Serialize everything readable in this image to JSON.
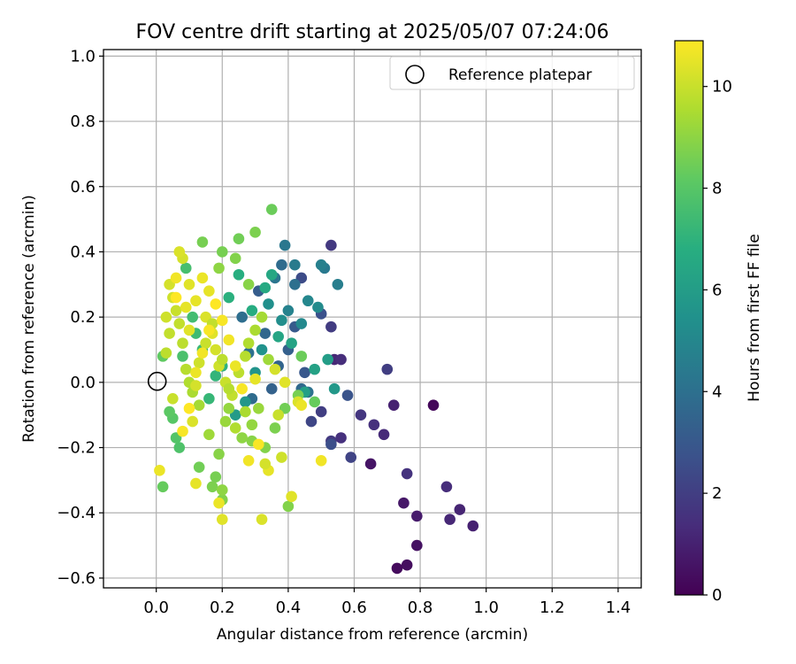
{
  "chart_data": {
    "type": "scatter",
    "title": "FOV centre drift starting at 2025/05/07 07:24:06",
    "xlabel": "Angular distance from reference (arcmin)",
    "ylabel": "Rotation from reference (arcmin)",
    "xlim": [
      -0.16,
      1.47
    ],
    "ylim": [
      -0.63,
      1.02
    ],
    "xticks": [
      0.0,
      0.2,
      0.4,
      0.6,
      0.8,
      1.0,
      1.2,
      1.4
    ],
    "xtick_labels": [
      "0.0",
      "0.2",
      "0.4",
      "0.6",
      "0.8",
      "1.0",
      "1.2",
      "1.4"
    ],
    "yticks": [
      -0.6,
      -0.4,
      -0.2,
      0.0,
      0.2,
      0.4,
      0.6,
      0.8,
      1.0
    ],
    "ytick_labels": [
      "−0.6",
      "−0.4",
      "−0.2",
      "0.0",
      "0.2",
      "0.4",
      "0.6",
      "0.8",
      "1.0"
    ],
    "grid": true,
    "legend": {
      "position": "top-right",
      "entries": [
        "Reference platepar"
      ]
    },
    "reference_point": {
      "x": 0.0,
      "y": 0.0,
      "label": "Reference platepar"
    },
    "colorbar": {
      "label": "Hours from first FF file",
      "colormap": "viridis",
      "range": [
        0,
        10.9
      ],
      "ticks": [
        0,
        2,
        4,
        6,
        8,
        10
      ],
      "tick_labels": [
        "0",
        "2",
        "4",
        "6",
        "8",
        "10"
      ]
    },
    "points": [
      [
        0.84,
        -0.07,
        0.2
      ],
      [
        0.73,
        -0.57,
        0.3
      ],
      [
        0.76,
        -0.56,
        0.4
      ],
      [
        0.79,
        -0.5,
        0.5
      ],
      [
        0.65,
        -0.25,
        0.6
      ],
      [
        0.75,
        -0.37,
        0.7
      ],
      [
        0.79,
        -0.41,
        0.8
      ],
      [
        0.96,
        -0.44,
        1.0
      ],
      [
        0.92,
        -0.39,
        1.1
      ],
      [
        0.89,
        -0.42,
        1.2
      ],
      [
        0.88,
        -0.32,
        1.4
      ],
      [
        0.72,
        -0.07,
        1.0
      ],
      [
        0.69,
        -0.16,
        1.3
      ],
      [
        0.66,
        -0.13,
        1.5
      ],
      [
        0.62,
        -0.1,
        1.7
      ],
      [
        0.76,
        -0.28,
        1.6
      ],
      [
        0.56,
        -0.17,
        1.5
      ],
      [
        0.53,
        -0.18,
        1.8
      ],
      [
        0.54,
        0.07,
        1.2
      ],
      [
        0.56,
        0.07,
        1.4
      ],
      [
        0.53,
        0.17,
        1.9
      ],
      [
        0.53,
        0.42,
        1.8
      ],
      [
        0.7,
        0.04,
        2.0
      ],
      [
        0.59,
        -0.23,
        2.2
      ],
      [
        0.5,
        -0.09,
        2.0
      ],
      [
        0.47,
        -0.12,
        2.3
      ],
      [
        0.44,
        0.32,
        2.5
      ],
      [
        0.53,
        -0.19,
        2.6
      ],
      [
        0.58,
        -0.04,
        2.8
      ],
      [
        0.5,
        0.21,
        2.7
      ],
      [
        0.45,
        0.03,
        3.0
      ],
      [
        0.42,
        0.17,
        3.1
      ],
      [
        0.4,
        0.1,
        3.3
      ],
      [
        0.37,
        0.05,
        3.5
      ],
      [
        0.35,
        -0.02,
        3.4
      ],
      [
        0.33,
        0.15,
        3.6
      ],
      [
        0.31,
        0.28,
        3.2
      ],
      [
        0.29,
        -0.05,
        3.8
      ],
      [
        0.28,
        0.09,
        4.0
      ],
      [
        0.26,
        0.2,
        3.9
      ],
      [
        0.44,
        -0.02,
        3.7
      ],
      [
        0.46,
        -0.03,
        4.1
      ],
      [
        0.38,
        0.36,
        3.8
      ],
      [
        0.42,
        0.3,
        4.0
      ],
      [
        0.36,
        0.32,
        4.2
      ],
      [
        0.39,
        0.42,
        4.3
      ],
      [
        0.51,
        0.35,
        4.4
      ],
      [
        0.55,
        0.3,
        4.6
      ],
      [
        0.5,
        0.36,
        4.7
      ],
      [
        0.42,
        0.36,
        4.5
      ],
      [
        0.4,
        0.22,
        4.8
      ],
      [
        0.46,
        0.25,
        5.0
      ],
      [
        0.49,
        0.23,
        5.2
      ],
      [
        0.44,
        0.18,
        5.1
      ],
      [
        0.38,
        0.19,
        5.3
      ],
      [
        0.34,
        0.24,
        5.4
      ],
      [
        0.32,
        0.1,
        5.5
      ],
      [
        0.3,
        0.03,
        5.6
      ],
      [
        0.27,
        -0.06,
        5.7
      ],
      [
        0.24,
        -0.1,
        5.9
      ],
      [
        0.54,
        -0.02,
        5.8
      ],
      [
        0.52,
        0.07,
        6.0
      ],
      [
        0.48,
        0.04,
        6.2
      ],
      [
        0.45,
        -0.03,
        6.1
      ],
      [
        0.41,
        0.12,
        6.3
      ],
      [
        0.37,
        0.14,
        6.4
      ],
      [
        0.35,
        0.33,
        6.5
      ],
      [
        0.33,
        0.29,
        6.6
      ],
      [
        0.29,
        0.22,
        6.7
      ],
      [
        0.25,
        0.33,
        6.8
      ],
      [
        0.22,
        0.26,
        6.9
      ],
      [
        0.2,
        0.05,
        7.0
      ],
      [
        0.18,
        0.02,
        7.1
      ],
      [
        0.16,
        -0.05,
        7.2
      ],
      [
        0.14,
        0.1,
        7.3
      ],
      [
        0.12,
        0.15,
        7.4
      ],
      [
        0.11,
        0.2,
        7.5
      ],
      [
        0.09,
        0.35,
        7.6
      ],
      [
        0.08,
        0.08,
        7.7
      ],
      [
        0.07,
        -0.2,
        7.8
      ],
      [
        0.06,
        -0.17,
        7.9
      ],
      [
        0.05,
        -0.11,
        8.0
      ],
      [
        0.04,
        -0.09,
        8.1
      ],
      [
        0.02,
        0.08,
        8.2
      ],
      [
        0.02,
        -0.32,
        8.3
      ],
      [
        0.35,
        0.53,
        8.4
      ],
      [
        0.25,
        0.44,
        8.5
      ],
      [
        0.14,
        0.43,
        8.6
      ],
      [
        0.3,
        0.46,
        8.7
      ],
      [
        0.2,
        0.4,
        8.6
      ],
      [
        0.24,
        0.38,
        8.8
      ],
      [
        0.28,
        0.3,
        8.9
      ],
      [
        0.19,
        0.35,
        9.0
      ],
      [
        0.13,
        -0.26,
        8.5
      ],
      [
        0.18,
        -0.29,
        8.6
      ],
      [
        0.17,
        -0.32,
        8.7
      ],
      [
        0.2,
        -0.36,
        8.8
      ],
      [
        0.19,
        -0.22,
        8.9
      ],
      [
        0.2,
        -0.33,
        9.0
      ],
      [
        0.4,
        -0.38,
        8.8
      ],
      [
        0.44,
        0.08,
        8.4
      ],
      [
        0.43,
        -0.04,
        8.6
      ],
      [
        0.48,
        -0.06,
        8.3
      ],
      [
        0.39,
        -0.08,
        8.5
      ],
      [
        0.36,
        -0.14,
        8.7
      ],
      [
        0.33,
        -0.2,
        8.8
      ],
      [
        0.29,
        -0.18,
        8.9
      ],
      [
        0.26,
        -0.17,
        9.0
      ],
      [
        0.22,
        -0.08,
        9.1
      ],
      [
        0.21,
        -0.12,
        9.2
      ],
      [
        0.16,
        -0.16,
        9.3
      ],
      [
        0.13,
        -0.07,
        9.4
      ],
      [
        0.11,
        -0.03,
        9.5
      ],
      [
        0.1,
        0.0,
        9.6
      ],
      [
        0.09,
        0.04,
        9.7
      ],
      [
        0.08,
        0.12,
        9.8
      ],
      [
        0.07,
        0.18,
        9.9
      ],
      [
        0.06,
        0.22,
        10.0
      ],
      [
        0.05,
        0.26,
        10.1
      ],
      [
        0.04,
        0.3,
        10.2
      ],
      [
        0.03,
        0.09,
        9.8
      ],
      [
        0.04,
        0.15,
        9.9
      ],
      [
        0.05,
        -0.05,
        10.0
      ],
      [
        0.03,
        0.2,
        10.1
      ],
      [
        0.08,
        0.38,
        10.2
      ],
      [
        0.07,
        0.4,
        10.3
      ],
      [
        0.1,
        0.3,
        10.4
      ],
      [
        0.12,
        0.25,
        10.5
      ],
      [
        0.14,
        0.32,
        10.6
      ],
      [
        0.16,
        0.28,
        10.5
      ],
      [
        0.15,
        0.2,
        10.3
      ],
      [
        0.17,
        0.15,
        10.4
      ],
      [
        0.18,
        0.1,
        10.2
      ],
      [
        0.19,
        0.05,
        10.1
      ],
      [
        0.21,
        0.0,
        10.0
      ],
      [
        0.23,
        -0.04,
        9.9
      ],
      [
        0.25,
        0.03,
        9.8
      ],
      [
        0.27,
        0.08,
        9.7
      ],
      [
        0.28,
        0.12,
        9.6
      ],
      [
        0.3,
        0.16,
        9.5
      ],
      [
        0.32,
        0.2,
        9.4
      ],
      [
        0.34,
        0.07,
        9.3
      ],
      [
        0.31,
        -0.08,
        9.2
      ],
      [
        0.29,
        -0.13,
        9.1
      ],
      [
        0.27,
        -0.09,
        9.5
      ],
      [
        0.24,
        -0.14,
        9.6
      ],
      [
        0.22,
        -0.02,
        9.7
      ],
      [
        0.2,
        0.07,
        9.8
      ],
      [
        0.17,
        0.18,
        9.9
      ],
      [
        0.15,
        0.12,
        10.0
      ],
      [
        0.13,
        0.06,
        10.1
      ],
      [
        0.12,
        -0.01,
        10.2
      ],
      [
        0.11,
        -0.12,
        10.3
      ],
      [
        0.1,
        0.16,
        10.4
      ],
      [
        0.09,
        0.23,
        10.5
      ],
      [
        0.01,
        -0.27,
        10.6
      ],
      [
        0.06,
        0.32,
        10.7
      ],
      [
        0.12,
        -0.31,
        10.5
      ],
      [
        0.2,
        -0.42,
        10.4
      ],
      [
        0.19,
        -0.37,
        10.6
      ],
      [
        0.32,
        -0.42,
        10.3
      ],
      [
        0.34,
        -0.27,
        10.5
      ],
      [
        0.33,
        -0.25,
        10.2
      ],
      [
        0.38,
        -0.23,
        10.1
      ],
      [
        0.41,
        -0.35,
        10.4
      ],
      [
        0.5,
        -0.24,
        10.7
      ],
      [
        0.37,
        -0.1,
        10.0
      ],
      [
        0.43,
        -0.06,
        10.3
      ],
      [
        0.44,
        -0.07,
        10.6
      ],
      [
        0.39,
        0.0,
        10.4
      ],
      [
        0.36,
        0.04,
        10.2
      ],
      [
        0.3,
        0.01,
        10.5
      ],
      [
        0.26,
        -0.02,
        10.8
      ],
      [
        0.24,
        0.05,
        10.6
      ],
      [
        0.22,
        0.13,
        10.7
      ],
      [
        0.2,
        0.19,
        10.8
      ],
      [
        0.18,
        0.24,
        10.9
      ],
      [
        0.16,
        0.16,
        10.8
      ],
      [
        0.14,
        0.09,
        10.7
      ],
      [
        0.12,
        0.03,
        10.6
      ],
      [
        0.1,
        -0.08,
        10.9
      ],
      [
        0.08,
        -0.15,
        10.8
      ],
      [
        0.06,
        0.26,
        10.9
      ],
      [
        0.28,
        -0.24,
        10.7
      ],
      [
        0.31,
        -0.19,
        10.8
      ]
    ]
  }
}
